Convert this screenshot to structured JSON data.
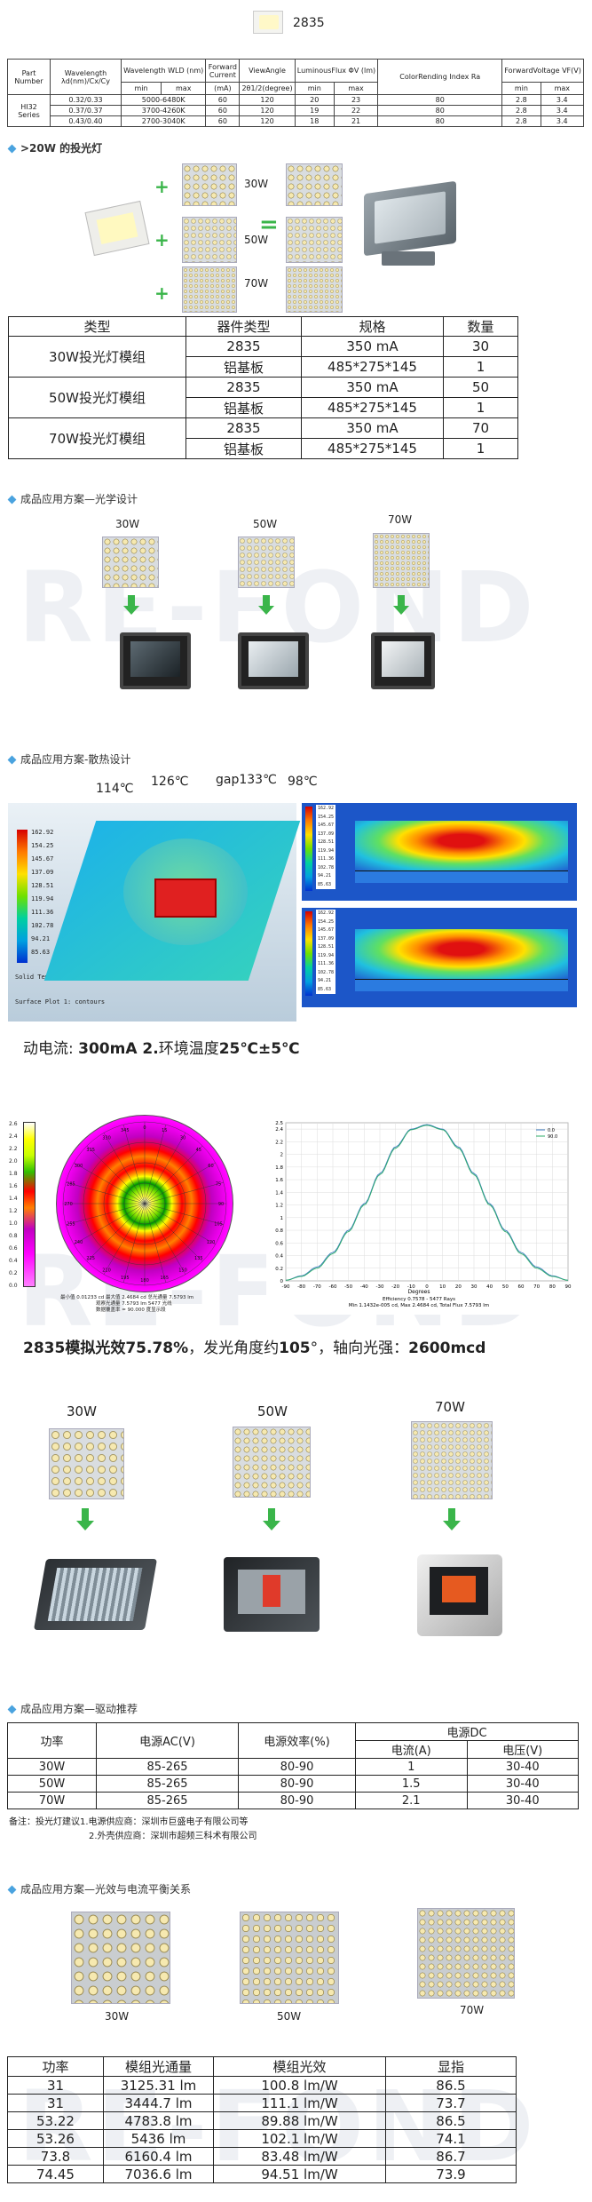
{
  "header": {
    "chip_model": "2835"
  },
  "spec_table": {
    "headers": {
      "part_number": "Part Number",
      "wavelength": "Wavelength λd(nm)/Cx/Cy",
      "wavelength_wld": "Wavelength WLD (nm)",
      "forward_current": "Forward Current",
      "forward_current_unit": "(mA)",
      "view_angle": "ViewAngle",
      "view_angle_unit": "2θ1/2(degree)",
      "luminous_flux": "LuminousFlux ΦV (lm)",
      "cri": "ColorRending Index Ra",
      "forward_voltage": "ForwardVoltage VF(V)",
      "min": "min",
      "max": "max"
    },
    "series": "HI32 Series",
    "rows": [
      {
        "wavelength": "0.32/0.33",
        "wld": "5000-6480K",
        "current": "60",
        "angle": "120",
        "flux_min": "20",
        "flux_max": "23",
        "cri": "80",
        "vf_min": "2.8",
        "vf_max": "3.4"
      },
      {
        "wavelength": "0.37/0.37",
        "wld": "3700-4260K",
        "current": "60",
        "angle": "120",
        "flux_min": "19",
        "flux_max": "22",
        "cri": "80",
        "vf_min": "2.8",
        "vf_max": "3.4"
      },
      {
        "wavelength": "0.43/0.40",
        "wld": "2700-3040K",
        "current": "60",
        "angle": "120",
        "flux_min": "18",
        "flux_max": "21",
        "cri": "80",
        "vf_min": "2.8",
        "vf_max": "3.4"
      }
    ]
  },
  "section_floodlight": {
    "title": ">20W 的投光灯",
    "labels": [
      "30W",
      "50W",
      "70W"
    ],
    "plus": "+",
    "equals": "="
  },
  "module_table": {
    "headers": [
      "类型",
      "器件类型",
      "规格",
      "数量"
    ],
    "groups": [
      {
        "type": "30W投光灯模组",
        "rows": [
          {
            "device": "2835",
            "spec": "350 mA",
            "qty": "30"
          },
          {
            "device": "铝基板",
            "spec": "485*275*145",
            "qty": "1"
          }
        ]
      },
      {
        "type": "50W投光灯模组",
        "rows": [
          {
            "device": "2835",
            "spec": "350 mA",
            "qty": "50"
          },
          {
            "device": "铝基板",
            "spec": "485*275*145",
            "qty": "1"
          }
        ]
      },
      {
        "type": "70W投光灯模组",
        "rows": [
          {
            "device": "2835",
            "spec": "350 mA",
            "qty": "70"
          },
          {
            "device": "铝基板",
            "spec": "485*275*145",
            "qty": "1"
          }
        ]
      }
    ]
  },
  "section_optical": {
    "title": "成品应用方案—光学设计",
    "labels": [
      "30W",
      "50W",
      "70W"
    ]
  },
  "section_thermal": {
    "title": "成品应用方案-散热设计",
    "temps": [
      "114℃",
      "126℃",
      "gap133℃",
      "98℃"
    ],
    "legend_values": [
      "162.92",
      "154.25",
      "145.67",
      "137.09",
      "128.51",
      "119.94",
      "111.36",
      "102.78",
      "94.21",
      "85.63"
    ],
    "legend_small": [
      "162.92",
      "154.25",
      "145.67",
      "137.09",
      "128.51",
      "119.94",
      "111.36",
      "102.78",
      "94.21",
      "85.63"
    ],
    "solid_temp": "Solid Temperature",
    "surface": "Surface Plot 1: contours",
    "footer_prefix": "动电流: ",
    "footer_current": "300mA",
    "footer_mid": "  2.",
    "footer_env": "环境温度",
    "footer_temp": "25℃±5℃"
  },
  "section_photometric": {
    "polar_ticks": [
      "0",
      "15",
      "30",
      "45",
      "60",
      "75",
      "90",
      "105",
      "120",
      "135",
      "150",
      "165",
      "180",
      "195",
      "210",
      "225",
      "240",
      "255",
      "270",
      "285",
      "300",
      "315",
      "330",
      "345"
    ],
    "colorbar_values": [
      "2.6",
      "2.4",
      "2.2",
      "2.0",
      "1.8",
      "1.6",
      "1.4",
      "1.2",
      "1.0",
      "0.8",
      "0.6",
      "0.4",
      "0.2",
      "0.0"
    ],
    "polar_note_1": "最小值 0.01233 cd  最大值 2.4684 cd  总光通量 7.5793 lm",
    "polar_note_2": "观察光通量 7.5793 lm  5477 光线",
    "polar_note_3": "数据覆盖率 = 90.000 度显示段",
    "curve_legend": [
      "0.0",
      "90.0"
    ],
    "curve_xlabel": "Degrees",
    "curve_info_1": "Efficiency 0.7578 - 5477 Rays",
    "curve_info_2": "Min 1.1432e-005 cd, Max 2.4684 cd, Total Flux 7.5793 lm",
    "x_ticks": [
      "-90",
      "-80",
      "-70",
      "-60",
      "-50",
      "-40",
      "-30",
      "-20",
      "-10",
      "0",
      "10",
      "20",
      "30",
      "40",
      "50",
      "60",
      "70",
      "80",
      "90"
    ],
    "y_ticks": [
      "2.5",
      "2.4",
      "2.2",
      "2",
      "1.8",
      "1.6",
      "1.4",
      "1.2",
      "1",
      "0.8",
      "0.6",
      "0.4",
      "0.2",
      "0"
    ],
    "summary_a": "2835模拟光效",
    "summary_b": "75.78%",
    "summary_c": "，发光角度约",
    "summary_d": "105",
    "summary_e": "°，轴向光强：",
    "summary_f": "2600mcd"
  },
  "chart_data": {
    "type": "line",
    "x": [
      -90,
      -80,
      -70,
      -60,
      -50,
      -40,
      -30,
      -20,
      -10,
      0,
      10,
      20,
      30,
      40,
      50,
      60,
      70,
      80,
      90
    ],
    "series": [
      {
        "name": "0.0",
        "values": [
          0.01,
          0.08,
          0.22,
          0.45,
          0.8,
          1.22,
          1.7,
          2.12,
          2.4,
          2.47,
          2.4,
          2.12,
          1.7,
          1.22,
          0.8,
          0.45,
          0.22,
          0.08,
          0.01
        ]
      },
      {
        "name": "90.0",
        "values": [
          0.01,
          0.07,
          0.2,
          0.43,
          0.78,
          1.2,
          1.68,
          2.1,
          2.39,
          2.46,
          2.39,
          2.1,
          1.68,
          1.2,
          0.78,
          0.43,
          0.2,
          0.07,
          0.01
        ]
      }
    ],
    "xlabel": "Degrees",
    "ylabel": "",
    "xlim": [
      -90,
      90
    ],
    "ylim": [
      0,
      2.5
    ]
  },
  "section_modules2": {
    "labels": [
      "30W",
      "50W",
      "70W"
    ]
  },
  "section_driver": {
    "title": "成品应用方案—驱动推荐",
    "headers": {
      "power": "功率",
      "ac": "电源AC(V)",
      "efficiency": "电源效率(%)",
      "dc": "电源DC",
      "current": "电流(A)",
      "voltage": "电压(V)"
    },
    "rows": [
      {
        "power": "30W",
        "ac": "85-265",
        "eff": "80-90",
        "current": "1",
        "voltage": "30-40"
      },
      {
        "power": "50W",
        "ac": "85-265",
        "eff": "80-90",
        "current": "1.5",
        "voltage": "30-40"
      },
      {
        "power": "70W",
        "ac": "85-265",
        "eff": "80-90",
        "current": "2.1",
        "voltage": "30-40"
      }
    ],
    "note_1": "备注：投光灯建议1.电源供应商：深圳市巨盛电子有限公司等",
    "note_2": "2.外壳供应商：深圳市超频三科术有限公司"
  },
  "section_balance": {
    "title": "成品应用方案—光效与电流平衡关系",
    "labels": [
      "30W",
      "50W",
      "70W"
    ],
    "headers": [
      "功率",
      "模组光通量",
      "模组光效",
      "显指"
    ],
    "rows": [
      {
        "power": "31",
        "flux": "3125.31 lm",
        "eff": "100.8 lm/W",
        "cri": "86.5"
      },
      {
        "power": "31",
        "flux": "3444.7 lm",
        "eff": "111.1 lm/W",
        "cri": "73.7"
      },
      {
        "power": "53.22",
        "flux": "4783.8 lm",
        "eff": "89.88 lm/W",
        "cri": "86.5"
      },
      {
        "power": "53.26",
        "flux": "5436 lm",
        "eff": "102.1 lm/W",
        "cri": "74.1"
      },
      {
        "power": "73.8",
        "flux": "6160.4 lm",
        "eff": "83.48 lm/W",
        "cri": "86.7"
      },
      {
        "power": "74.45",
        "flux": "7036.6 lm",
        "eff": "94.51 lm/W",
        "cri": "73.9"
      }
    ]
  },
  "watermark": "RE-FOND"
}
